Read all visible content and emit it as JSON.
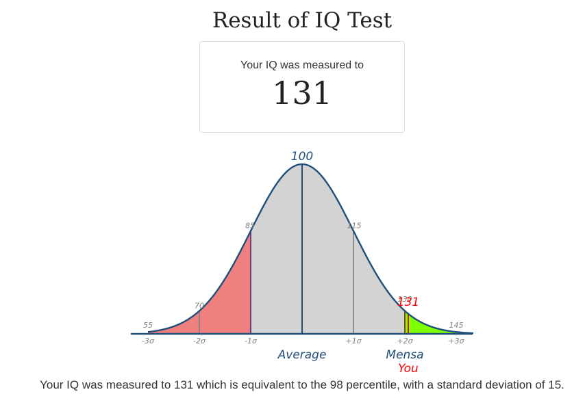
{
  "title": "Result of IQ Test",
  "card": {
    "label": "Your IQ was measured to",
    "value": "131"
  },
  "summary": "Your IQ was measured to 131 which is equivalent to the 98 percentile, with a standard deviation of 15.",
  "colors": {
    "curve": "#1f4e79",
    "fill": "#d3d3d3",
    "low": "#f08080",
    "high": "#7fff00",
    "you": "#ff0000",
    "sigma_line": "#808080"
  },
  "chart_data": {
    "type": "area",
    "mean": 100,
    "sd": 15,
    "xlim": [
      55,
      150
    ],
    "your_score": 131,
    "you_label": "You",
    "you_value_label": "131",
    "mean_label": "100",
    "mean_caption": "Average",
    "mensa_value": 130,
    "mensa_label": "130",
    "mensa_caption": "Mensa",
    "value_labels": [
      {
        "x": 55,
        "text": "55"
      },
      {
        "x": 70,
        "text": "70"
      },
      {
        "x": 85,
        "text": "85"
      },
      {
        "x": 115,
        "text": "115"
      },
      {
        "x": 145,
        "text": "145"
      }
    ],
    "sigma_ticks": [
      {
        "x": 55,
        "text": "-3σ"
      },
      {
        "x": 70,
        "text": "-2σ"
      },
      {
        "x": 85,
        "text": "-1σ"
      },
      {
        "x": 115,
        "text": "+1σ"
      },
      {
        "x": 130,
        "text": "+2σ"
      },
      {
        "x": 145,
        "text": "+3σ"
      }
    ],
    "sigma_lines": [
      70,
      85,
      115
    ],
    "low_region": [
      55,
      85
    ],
    "high_region": [
      130,
      150
    ]
  }
}
